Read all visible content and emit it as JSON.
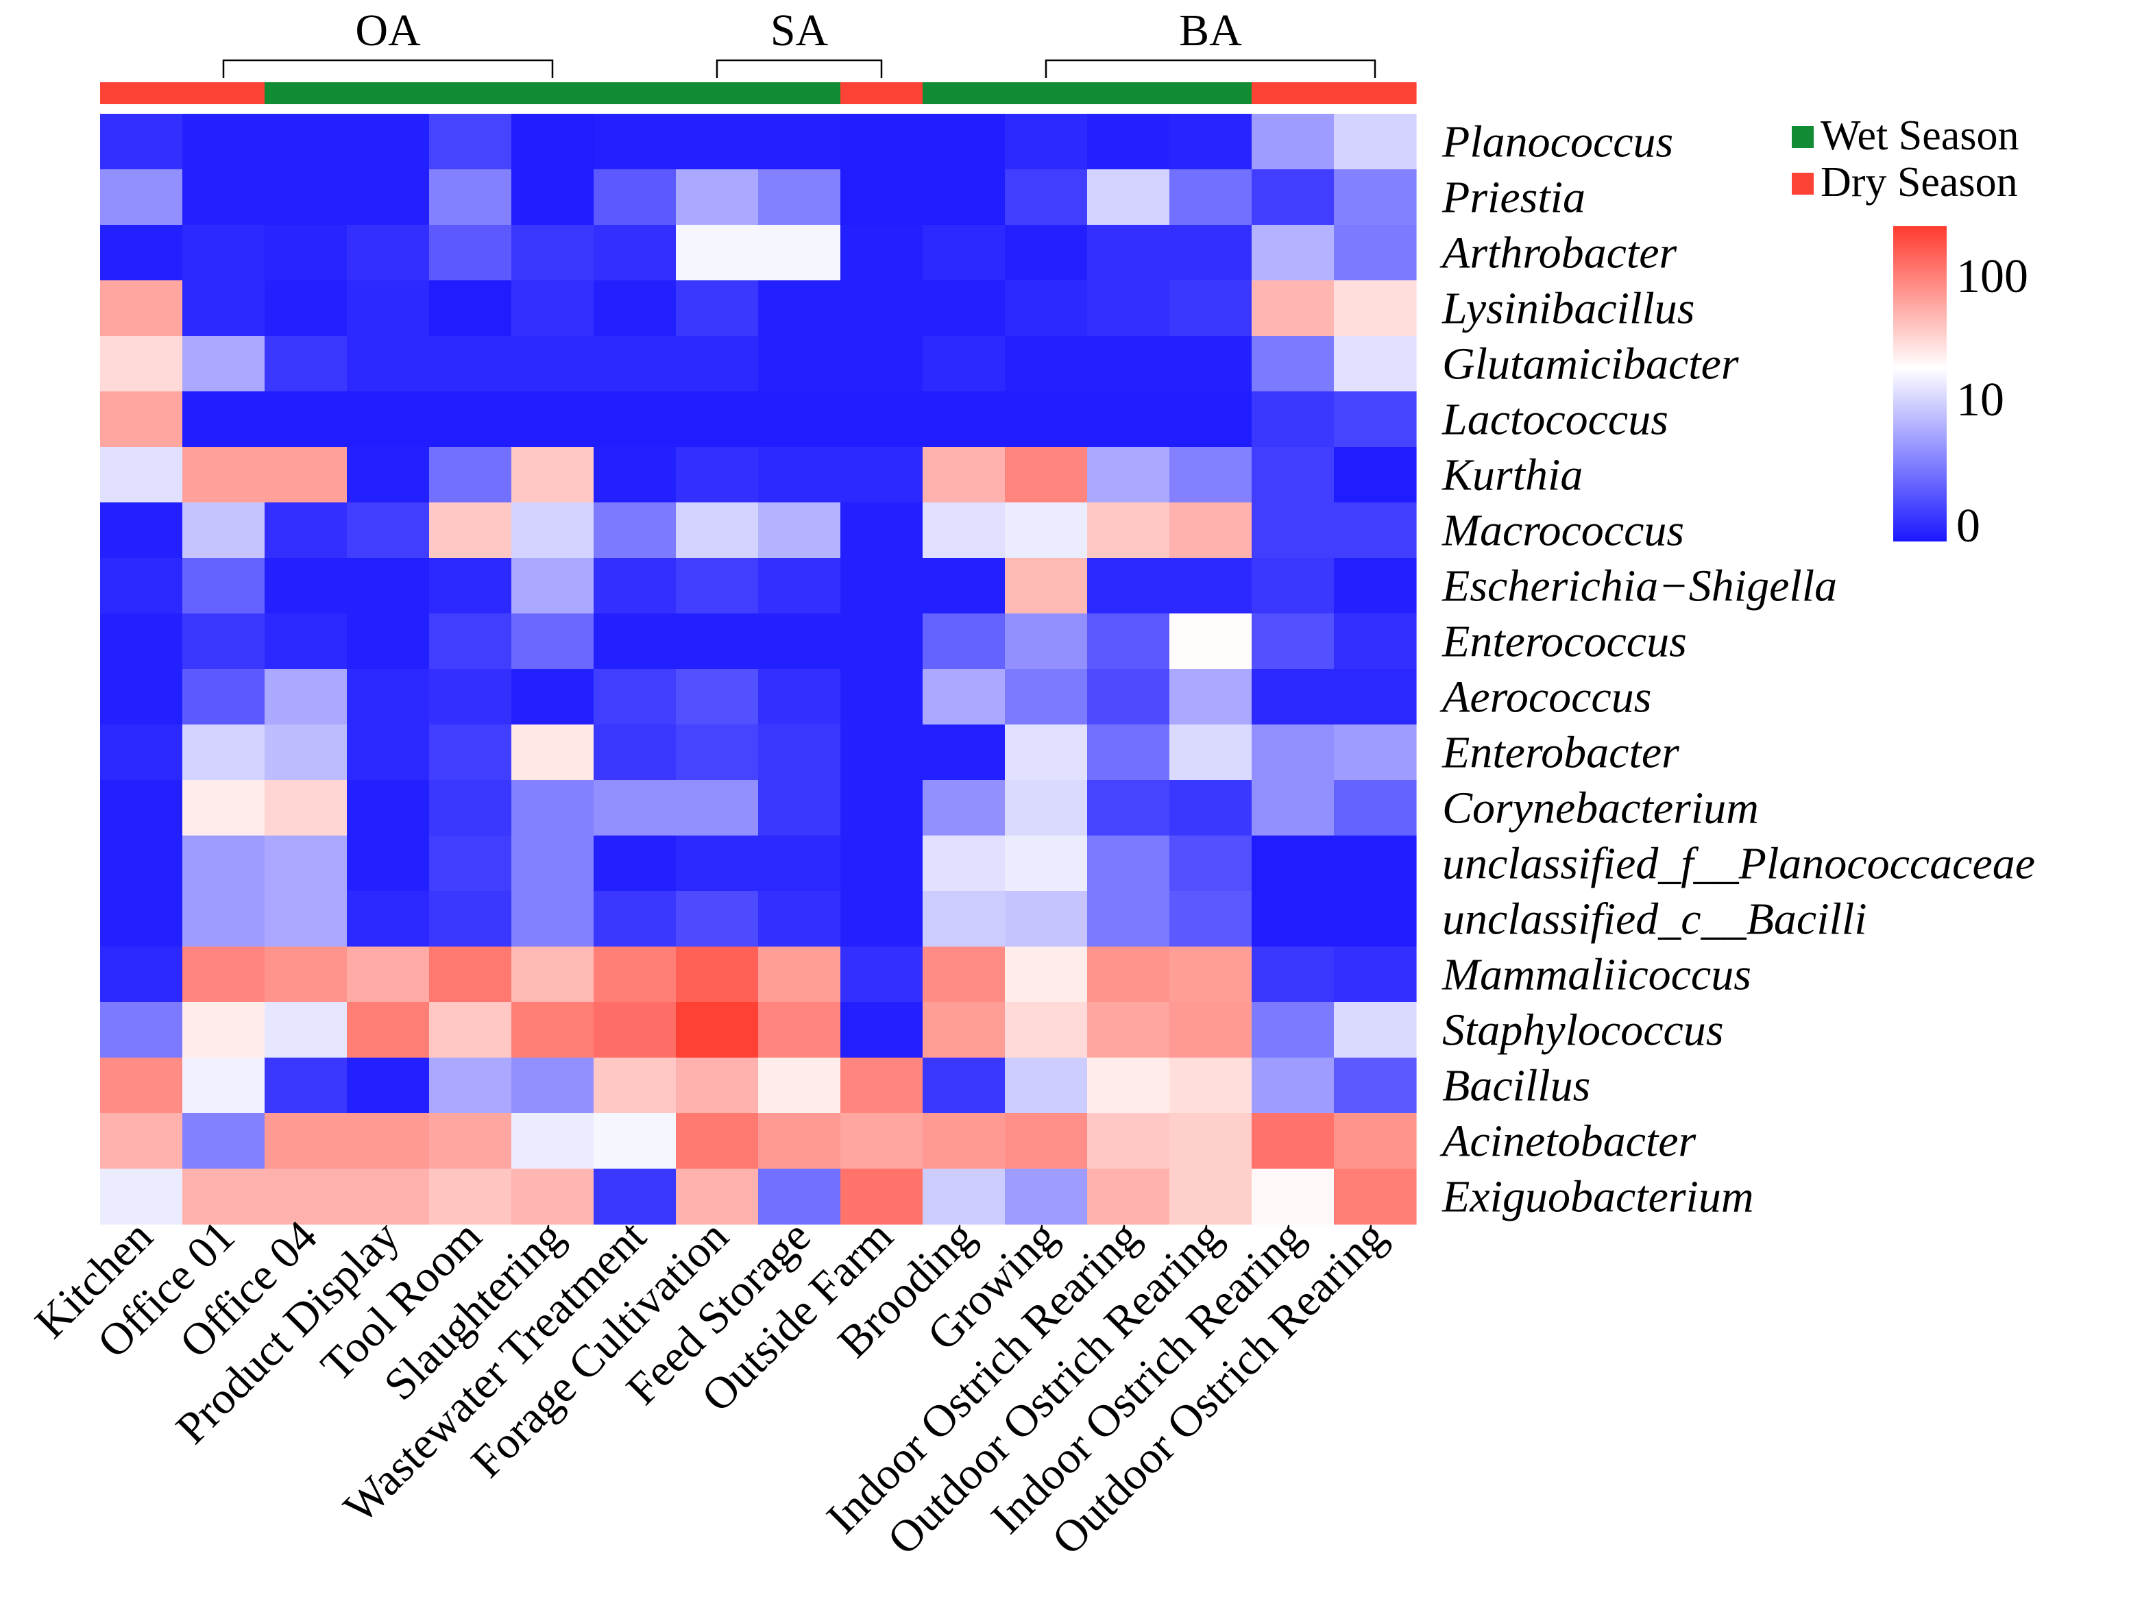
{
  "colors": {
    "low": "#1a17ff",
    "mid": "#ffffff",
    "high": "#ff3b2f",
    "wet_season": "#118c35",
    "dry_season": "#fc4235"
  },
  "legend": {
    "items": [
      {
        "label": "Wet Season",
        "color": "#118c35"
      },
      {
        "label": "Dry Season",
        "color": "#fc4235"
      }
    ]
  },
  "color_scale": {
    "ticks": [
      "100",
      "10",
      "0"
    ]
  },
  "chart_data": {
    "type": "heatmap",
    "title": "",
    "value_scale": "log",
    "scale_range": [
      0,
      150
    ],
    "columns": [
      "Kitchen",
      "Office 01",
      "Office 04",
      "Product Display",
      "Tool Room",
      "Slaughtering",
      "Wastewater Treatment",
      "Forage Cultivation",
      "Feed Storage",
      "Outside Farm",
      "Brooding",
      "Growing",
      "Indoor Ostrich Rearing",
      "Outdoor Ostrich Rearing",
      "Indoor Ostrich Rearing",
      "Outdoor Ostrich Rearing"
    ],
    "rows": [
      "Planococcus",
      "Priestia",
      "Arthrobacter",
      "Lysinibacillus",
      "Glutamicibacter",
      "Lactococcus",
      "Kurthia",
      "Macrococcus",
      "Escherichia−Shigella",
      "Enterococcus",
      "Aerococcus",
      "Enterobacter",
      "Corynebacterium",
      "unclassified_f__Planococcaceae",
      "unclassified_c__Bacilli",
      "Mammaliicoccus",
      "Staphylococcus",
      "Bacillus",
      "Acinetobacter",
      "Exiguobacterium"
    ],
    "groups": [
      {
        "label": "OA",
        "from": "Office 01",
        "to": "Slaughtering"
      },
      {
        "label": "SA",
        "from": "Forage Cultivation",
        "to": "Outside Farm"
      },
      {
        "label": "BA",
        "from": "Growing",
        "to": "Outdoor Ostrich Rearing"
      }
    ],
    "season": [
      "Dry Season",
      "Dry Season",
      "Wet Season",
      "Wet Season",
      "Wet Season",
      "Wet Season",
      "Wet Season",
      "Wet Season",
      "Wet Season",
      "Dry Season",
      "Wet Season",
      "Wet Season",
      "Wet Season",
      "Wet Season",
      "Dry Season",
      "Dry Season"
    ],
    "values": [
      [
        0.3,
        0.1,
        0.1,
        0.1,
        0.6,
        0.05,
        0.1,
        0.1,
        0.1,
        0.05,
        0.05,
        0.2,
        0.1,
        0.15,
        3.0,
        6.0
      ],
      [
        2.5,
        0.1,
        0.1,
        0.1,
        2.0,
        0.05,
        1.0,
        3.5,
        2.0,
        0.05,
        0.05,
        0.5,
        6.0,
        1.5,
        0.5,
        2.0
      ],
      [
        0.1,
        0.2,
        0.15,
        0.3,
        1.0,
        0.4,
        0.3,
        9.0,
        9.0,
        0.1,
        0.2,
        0.1,
        0.3,
        0.3,
        4.0,
        1.8
      ],
      [
        35,
        0.2,
        0.1,
        0.2,
        0.05,
        0.3,
        0.1,
        0.4,
        0.1,
        0.1,
        0.1,
        0.2,
        0.3,
        0.4,
        28,
        16
      ],
      [
        17,
        3.5,
        0.4,
        0.2,
        0.2,
        0.2,
        0.2,
        0.2,
        0.1,
        0.1,
        0.2,
        0.1,
        0.1,
        0.1,
        1.8,
        7.0
      ],
      [
        35,
        0.05,
        0.05,
        0.05,
        0.05,
        0.05,
        0.05,
        0.05,
        0.05,
        0.05,
        0.05,
        0.05,
        0.05,
        0.05,
        0.4,
        0.6
      ],
      [
        7.0,
        38,
        38,
        0.1,
        1.5,
        22,
        0.1,
        0.3,
        0.2,
        0.2,
        30,
        55,
        3.5,
        2.0,
        0.5,
        0.05
      ],
      [
        0.1,
        5.0,
        0.3,
        0.5,
        22,
        6.0,
        1.8,
        6.0,
        4.0,
        0.1,
        7.0,
        8.0,
        22,
        30,
        0.5,
        0.5
      ],
      [
        0.2,
        1.2,
        0.1,
        0.1,
        0.2,
        3.5,
        0.3,
        0.5,
        0.3,
        0.1,
        0.1,
        27,
        0.2,
        0.2,
        0.4,
        0.1
      ],
      [
        0.1,
        0.4,
        0.2,
        0.1,
        0.5,
        1.3,
        0.1,
        0.1,
        0.1,
        0.1,
        1.2,
        2.5,
        1.0,
        10.5,
        0.8,
        0.3
      ],
      [
        0.1,
        1.0,
        3.5,
        0.2,
        0.3,
        0.1,
        0.5,
        0.8,
        0.3,
        0.1,
        3.5,
        1.8,
        0.7,
        3.5,
        0.2,
        0.2
      ],
      [
        0.2,
        6.0,
        4.5,
        0.2,
        0.5,
        14,
        0.4,
        0.6,
        0.4,
        0.1,
        0.1,
        7.0,
        1.5,
        6.5,
        2.5,
        3.0
      ],
      [
        0.1,
        13,
        18,
        0.1,
        0.4,
        2.0,
        2.5,
        2.5,
        0.4,
        0.1,
        2.5,
        6.5,
        0.6,
        0.4,
        2.5,
        1.2
      ],
      [
        0.1,
        3.0,
        3.5,
        0.1,
        0.5,
        2.0,
        0.1,
        0.2,
        0.2,
        0.1,
        7.0,
        8.0,
        1.8,
        0.8,
        0.05,
        0.05
      ],
      [
        0.1,
        3.0,
        3.5,
        0.2,
        0.4,
        2.0,
        0.4,
        0.7,
        0.3,
        0.1,
        5.5,
        5.0,
        1.8,
        1.0,
        0.05,
        0.05
      ],
      [
        0.2,
        55,
        45,
        33,
        65,
        27,
        60,
        90,
        40,
        0.3,
        50,
        13,
        45,
        40,
        0.4,
        0.3
      ],
      [
        1.8,
        13,
        7.5,
        60,
        22,
        60,
        75,
        140,
        55,
        0.1,
        40,
        17,
        35,
        42,
        1.8,
        6.5
      ],
      [
        50,
        8.5,
        0.4,
        0.1,
        3.5,
        2.5,
        22,
        30,
        13,
        55,
        0.4,
        5.5,
        13,
        16,
        3.0,
        1.0
      ],
      [
        30,
        2.0,
        42,
        42,
        35,
        8.0,
        9.0,
        65,
        42,
        35,
        42,
        48,
        22,
        20,
        70,
        45
      ],
      [
        8.0,
        30,
        30,
        30,
        23,
        28,
        0.4,
        30,
        1.5,
        70,
        5.5,
        3.0,
        30,
        20,
        11,
        60
      ]
    ]
  }
}
